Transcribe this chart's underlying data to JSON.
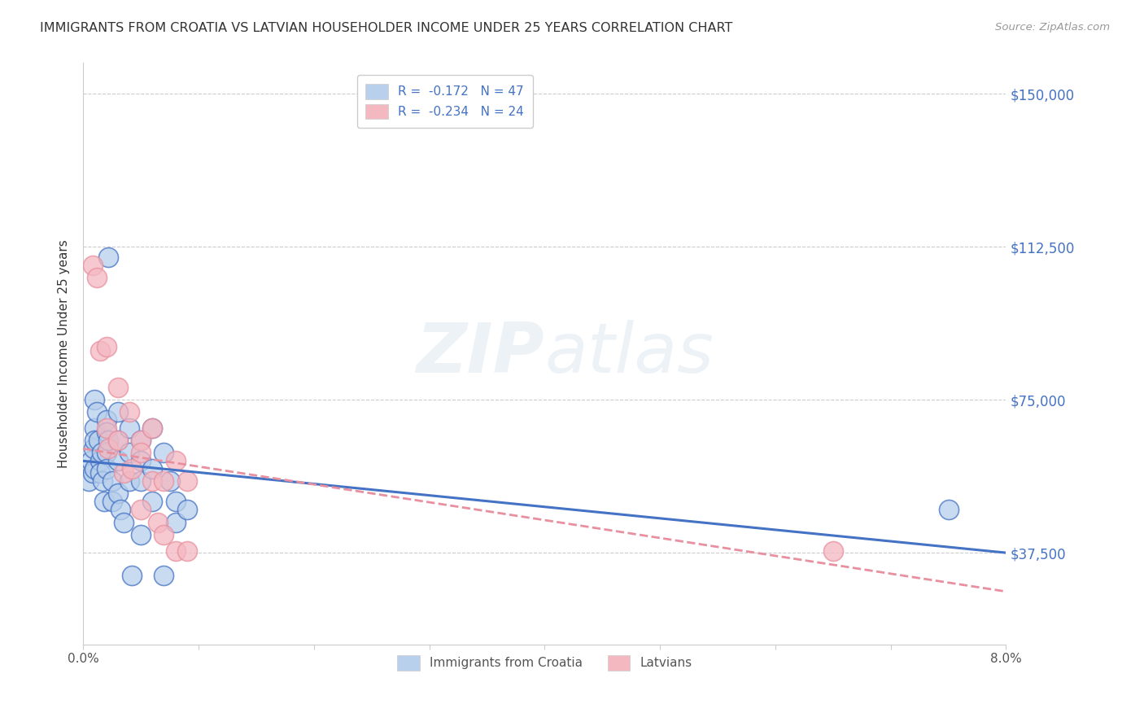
{
  "title": "IMMIGRANTS FROM CROATIA VS LATVIAN HOUSEHOLDER INCOME UNDER 25 YEARS CORRELATION CHART",
  "source": "Source: ZipAtlas.com",
  "ylabel": "Householder Income Under 25 years",
  "xlim": [
    0.0,
    0.08
  ],
  "ylim": [
    15000,
    157500
  ],
  "yticks": [
    37500,
    75000,
    112500,
    150000
  ],
  "ytick_labels": [
    "$37,500",
    "$75,000",
    "$112,500",
    "$150,000"
  ],
  "xticks": [
    0.0,
    0.01,
    0.02,
    0.03,
    0.04,
    0.05,
    0.06,
    0.07,
    0.08
  ],
  "xtick_labels": [
    "0.0%",
    "",
    "",
    "",
    "",
    "",
    "",
    "",
    "8.0%"
  ],
  "color_blue": "#b8d0eb",
  "color_pink": "#f4b8c1",
  "line_blue": "#4472c4",
  "line_pink": "#e8909f",
  "watermark_zip": "ZIP",
  "watermark_atlas": "atlas",
  "legend_label1": "Immigrants from Croatia",
  "legend_label2": "Latvians",
  "croatia_x": [
    0.0005,
    0.0007,
    0.0008,
    0.0009,
    0.001,
    0.001,
    0.001,
    0.001,
    0.0012,
    0.0013,
    0.0015,
    0.0015,
    0.0016,
    0.0017,
    0.0018,
    0.002,
    0.002,
    0.002,
    0.002,
    0.0022,
    0.0022,
    0.0025,
    0.0025,
    0.003,
    0.003,
    0.003,
    0.003,
    0.0032,
    0.0035,
    0.004,
    0.004,
    0.004,
    0.0042,
    0.005,
    0.005,
    0.005,
    0.005,
    0.006,
    0.006,
    0.006,
    0.007,
    0.007,
    0.0075,
    0.008,
    0.008,
    0.009,
    0.075
  ],
  "croatia_y": [
    55000,
    60000,
    57000,
    63000,
    75000,
    68000,
    65000,
    58000,
    72000,
    65000,
    60000,
    57000,
    62000,
    55000,
    50000,
    70000,
    67000,
    62000,
    58000,
    110000,
    65000,
    55000,
    50000,
    72000,
    65000,
    60000,
    52000,
    48000,
    45000,
    68000,
    62000,
    55000,
    32000,
    65000,
    60000,
    55000,
    42000,
    68000,
    58000,
    50000,
    62000,
    32000,
    55000,
    50000,
    45000,
    48000,
    48000
  ],
  "latvian_x": [
    0.0008,
    0.0012,
    0.0015,
    0.002,
    0.002,
    0.0022,
    0.003,
    0.003,
    0.0035,
    0.004,
    0.0042,
    0.005,
    0.005,
    0.005,
    0.006,
    0.006,
    0.0065,
    0.007,
    0.007,
    0.008,
    0.008,
    0.009,
    0.009,
    0.065
  ],
  "latvian_y": [
    108000,
    105000,
    87000,
    88000,
    68000,
    63000,
    78000,
    65000,
    57000,
    72000,
    58000,
    65000,
    62000,
    48000,
    68000,
    55000,
    45000,
    55000,
    42000,
    60000,
    38000,
    55000,
    38000,
    38000
  ],
  "croatia_trendline_x": [
    0.0,
    0.08
  ],
  "croatia_trendline_y": [
    60000,
    37500
  ],
  "latvian_trendline_x": [
    0.0,
    0.08
  ],
  "latvian_trendline_y": [
    63000,
    28000
  ],
  "bg_color": "#ffffff",
  "grid_color": "#cccccc",
  "title_color": "#333333",
  "right_label_color": "#4472c4"
}
